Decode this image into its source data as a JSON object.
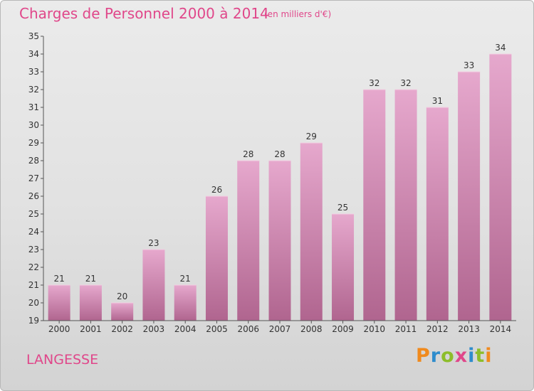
{
  "title": "Charges de Personnel 2000 à 2014",
  "subtitle": "(en milliers d'€)",
  "commune": "LANGESSE",
  "logo": "Proxiti",
  "colors": {
    "title": "#e0478a",
    "bar_light": "#e6a8cd",
    "bar_dark": "#b0658f",
    "axis": "#555555"
  },
  "chart_data": {
    "type": "bar",
    "categories": [
      "2000",
      "2001",
      "2002",
      "2003",
      "2004",
      "2005",
      "2006",
      "2007",
      "2008",
      "2009",
      "2010",
      "2011",
      "2012",
      "2013",
      "2014"
    ],
    "values": [
      21,
      21,
      20,
      23,
      21,
      26,
      28,
      28,
      29,
      25,
      32,
      32,
      31,
      33,
      34
    ],
    "ylim": [
      19,
      35
    ],
    "yticks": [
      19,
      20,
      21,
      22,
      23,
      24,
      25,
      26,
      27,
      28,
      29,
      30,
      31,
      32,
      33,
      34,
      35
    ],
    "ytick_labels": [
      "19",
      "20",
      "21",
      "22",
      "23",
      "24",
      "25",
      "26",
      "27",
      "28",
      "29",
      "30",
      "31",
      "32",
      "33",
      "34",
      "35"
    ],
    "data_labels": [
      "21",
      "21",
      "20",
      "23",
      "21",
      "26",
      "28",
      "28",
      "29",
      "25",
      "32",
      "32",
      "31",
      "33",
      "34"
    ],
    "grid": false,
    "xlabel": "",
    "ylabel": ""
  }
}
